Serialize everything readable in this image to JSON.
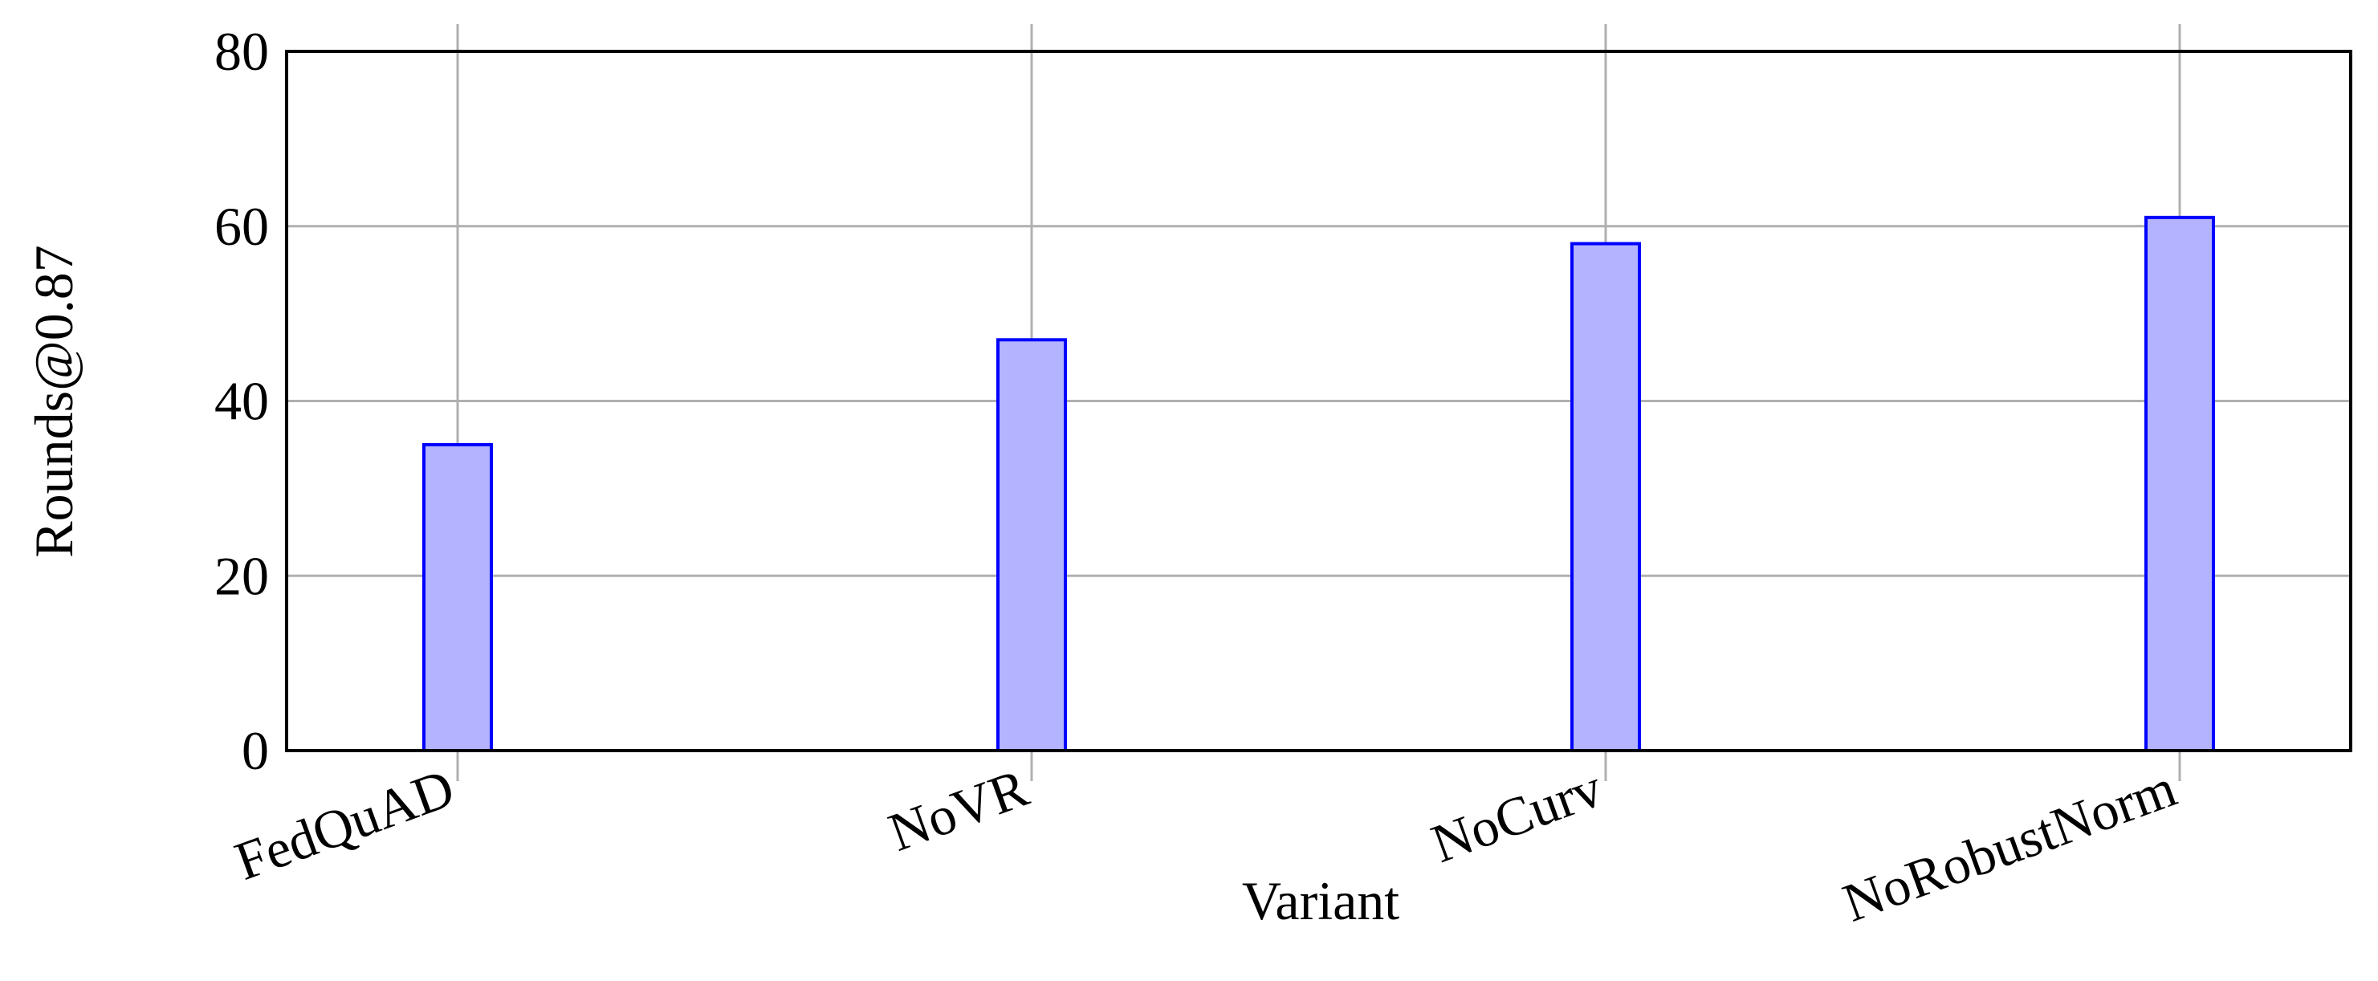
{
  "chart_data": {
    "type": "bar",
    "xlabel": "Variant",
    "ylabel": "Rounds@0.87",
    "categories": [
      "FedQuAD",
      "NoVR",
      "NoCurv",
      "NoRobustNorm"
    ],
    "values": [
      35,
      47,
      58,
      61
    ],
    "color": "#b3b3ff",
    "edgecolor": "#0000ff",
    "ylim": [
      0,
      80
    ],
    "yticks": [
      0,
      20,
      40,
      60,
      80
    ],
    "grid": true
  }
}
